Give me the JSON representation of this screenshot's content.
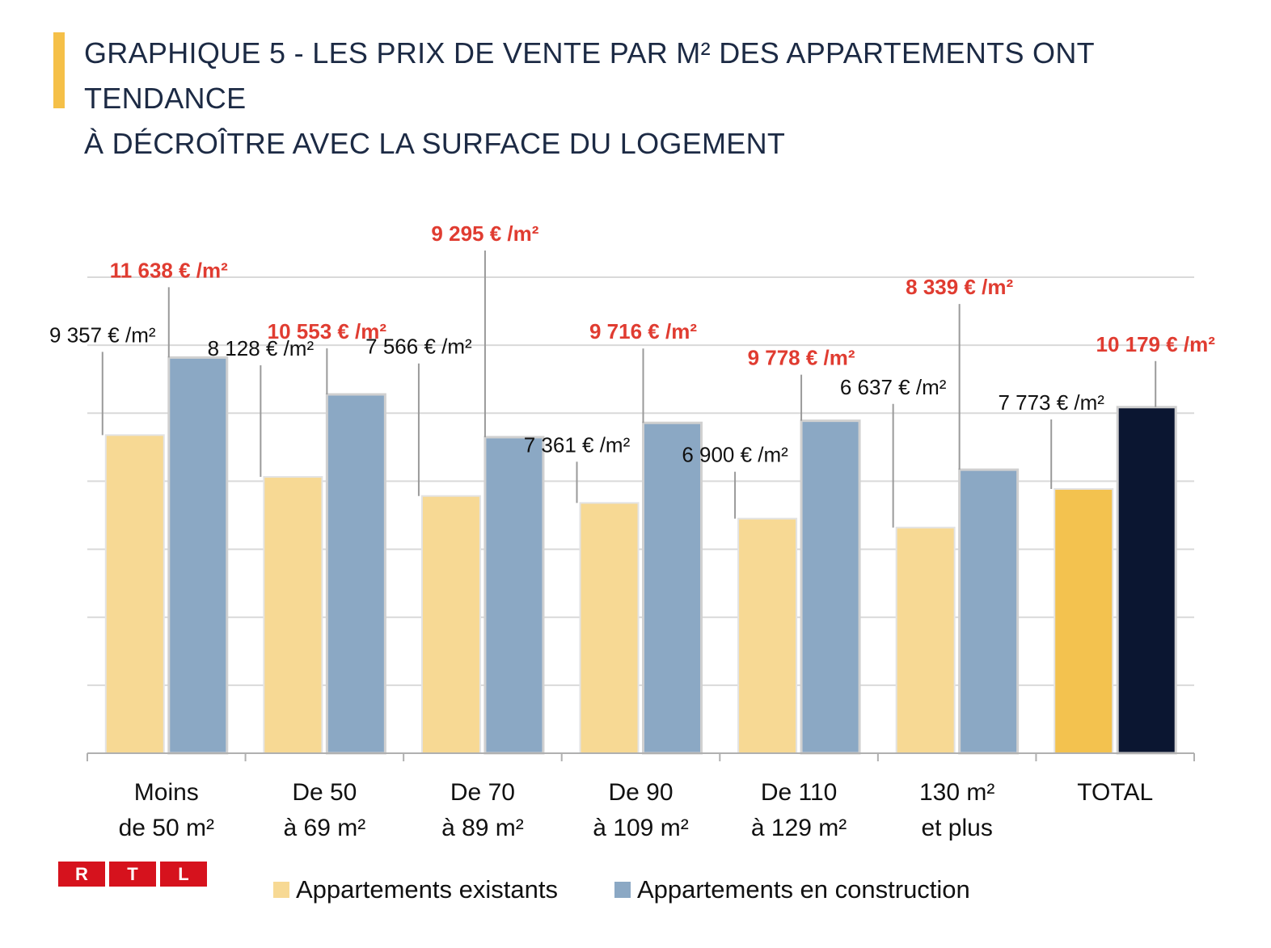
{
  "title": {
    "line1": "GRAPHIQUE 5 - LES PRIX DE VENTE PAR M² DES APPARTEMENTS ONT TENDANCE",
    "line2": "À DÉCROÎTRE AVEC LA SURFACE DU LOGEMENT"
  },
  "logo": {
    "letters": [
      "R",
      "T",
      "L"
    ],
    "color": "#d6121d"
  },
  "legend": {
    "existing": "Appartements existants",
    "construction": "Appartements en construction"
  },
  "colors": {
    "existing": "#f7d994",
    "construction": "#8ba8c4",
    "total_existing": "#f3c24f",
    "total_construction": "#0b1631",
    "construction_label": "#e03c31",
    "grid": "#d9d9d9",
    "axis": "#b0b0b0"
  },
  "chart_data": {
    "type": "bar",
    "title": "GRAPHIQUE 5 - LES PRIX DE VENTE PAR M² DES APPARTEMENTS ONT TENDANCE À DÉCROÎTRE AVEC LA SURFACE DU LOGEMENT",
    "xlabel": "",
    "ylabel": "",
    "unit": "€ /m²",
    "ylim": [
      0,
      14000
    ],
    "grid": true,
    "legend_position": "bottom",
    "categories": [
      [
        "Moins",
        "de 50 m²"
      ],
      [
        "De 50",
        "à 69 m²"
      ],
      [
        "De 70",
        "à 89 m²"
      ],
      [
        "De 90",
        "à 109 m²"
      ],
      [
        "De 110",
        "à 129 m²"
      ],
      [
        "130 m²",
        "et plus"
      ],
      [
        "TOTAL"
      ]
    ],
    "series": [
      {
        "name": "Appartements existants",
        "values": [
          9357,
          8128,
          7566,
          7361,
          6900,
          6637,
          7773
        ],
        "labels": [
          "9 357 € /m²",
          "8 128 € /m²",
          "7 566 € /m²",
          "7 361 € /m²",
          "6 900 € /m²",
          "6 637 € /m²",
          "7 773 € /m²"
        ]
      },
      {
        "name": "Appartements en construction",
        "values": [
          11638,
          10553,
          9295,
          9716,
          9778,
          8339,
          10179
        ],
        "labels": [
          "11 638 € /m²",
          "10 553 € /m²",
          "9 295 € /m²",
          "9 716 € /m²",
          "9 778 € /m²",
          "8 339 € /m²",
          "10 179 € /m²"
        ]
      }
    ]
  }
}
